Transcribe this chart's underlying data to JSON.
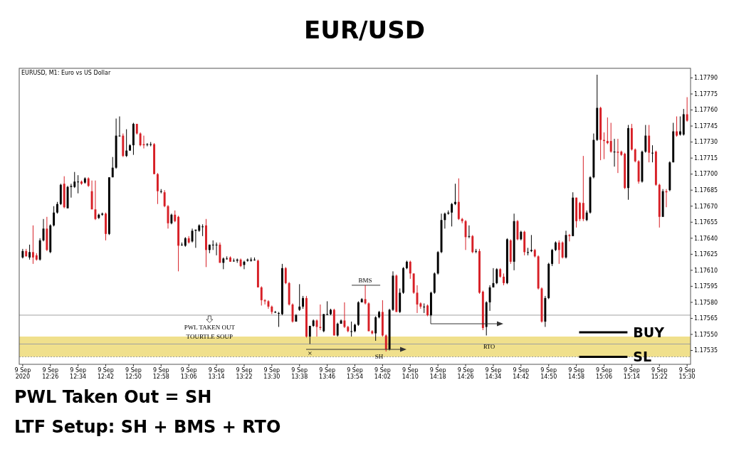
{
  "chart_data": {
    "type": "candlestick",
    "title": "EUR/USD",
    "subtitle": "EURUSD, M1: Euro vs US Dollar",
    "x": [
      "2020-09-09T12:18",
      "2020-09-09T12:19",
      "2020-09-09T12:20",
      "2020-09-09T12:21",
      "2020-09-09T12:22",
      "2020-09-09T12:23",
      "2020-09-09T12:24",
      "2020-09-09T12:25",
      "2020-09-09T12:26",
      "2020-09-09T12:27",
      "2020-09-09T12:28",
      "2020-09-09T12:29",
      "2020-09-09T12:30",
      "2020-09-09T12:31",
      "2020-09-09T12:32",
      "2020-09-09T12:33",
      "2020-09-09T12:34",
      "2020-09-09T12:35",
      "2020-09-09T12:36",
      "2020-09-09T12:37",
      "2020-09-09T12:38",
      "2020-09-09T12:39",
      "2020-09-09T12:40",
      "2020-09-09T12:41",
      "2020-09-09T12:42",
      "2020-09-09T12:43",
      "2020-09-09T12:44",
      "2020-09-09T12:45",
      "2020-09-09T12:46",
      "2020-09-09T12:47",
      "2020-09-09T12:48",
      "2020-09-09T12:49",
      "2020-09-09T12:50",
      "2020-09-09T12:51",
      "2020-09-09T12:52",
      "2020-09-09T12:53",
      "2020-09-09T12:54",
      "2020-09-09T12:55",
      "2020-09-09T12:56",
      "2020-09-09T12:57",
      "2020-09-09T12:58",
      "2020-09-09T12:59",
      "2020-09-09T13:00",
      "2020-09-09T13:01",
      "2020-09-09T13:02",
      "2020-09-09T13:03",
      "2020-09-09T13:04",
      "2020-09-09T13:05",
      "2020-09-09T13:06",
      "2020-09-09T13:07",
      "2020-09-09T13:08",
      "2020-09-09T13:09",
      "2020-09-09T13:10",
      "2020-09-09T13:11",
      "2020-09-09T13:12",
      "2020-09-09T13:13",
      "2020-09-09T13:14",
      "2020-09-09T13:15",
      "2020-09-09T13:16",
      "2020-09-09T13:17",
      "2020-09-09T13:18",
      "2020-09-09T13:19",
      "2020-09-09T13:20",
      "2020-09-09T13:21",
      "2020-09-09T13:22",
      "2020-09-09T13:23",
      "2020-09-09T13:24",
      "2020-09-09T13:25",
      "2020-09-09T13:26",
      "2020-09-09T13:27",
      "2020-09-09T13:28",
      "2020-09-09T13:29",
      "2020-09-09T13:30",
      "2020-09-09T13:31",
      "2020-09-09T13:32",
      "2020-09-09T13:33",
      "2020-09-09T13:34",
      "2020-09-09T13:35",
      "2020-09-09T13:36",
      "2020-09-09T13:37",
      "2020-09-09T13:38",
      "2020-09-09T13:39",
      "2020-09-09T13:40",
      "2020-09-09T13:41",
      "2020-09-09T13:42",
      "2020-09-09T13:43",
      "2020-09-09T13:44",
      "2020-09-09T13:45",
      "2020-09-09T13:46",
      "2020-09-09T13:47",
      "2020-09-09T13:48",
      "2020-09-09T13:49",
      "2020-09-09T13:50",
      "2020-09-09T13:51",
      "2020-09-09T13:52",
      "2020-09-09T13:53",
      "2020-09-09T13:54",
      "2020-09-09T13:55",
      "2020-09-09T13:56",
      "2020-09-09T13:57",
      "2020-09-09T13:58",
      "2020-09-09T13:59",
      "2020-09-09T14:00",
      "2020-09-09T14:01",
      "2020-09-09T14:02",
      "2020-09-09T14:03",
      "2020-09-09T14:04",
      "2020-09-09T14:05",
      "2020-09-09T14:06",
      "2020-09-09T14:07",
      "2020-09-09T14:08",
      "2020-09-09T14:09",
      "2020-09-09T14:10",
      "2020-09-09T14:11",
      "2020-09-09T14:12",
      "2020-09-09T14:13",
      "2020-09-09T14:14",
      "2020-09-09T14:15",
      "2020-09-09T14:16",
      "2020-09-09T14:17",
      "2020-09-09T14:18",
      "2020-09-09T14:19",
      "2020-09-09T14:20",
      "2020-09-09T14:21",
      "2020-09-09T14:22",
      "2020-09-09T14:23",
      "2020-09-09T14:24",
      "2020-09-09T14:25",
      "2020-09-09T14:26",
      "2020-09-09T14:27",
      "2020-09-09T14:28",
      "2020-09-09T14:29",
      "2020-09-09T14:30",
      "2020-09-09T14:31",
      "2020-09-09T14:32",
      "2020-09-09T14:33",
      "2020-09-09T14:34",
      "2020-09-09T14:35",
      "2020-09-09T14:36",
      "2020-09-09T14:37",
      "2020-09-09T14:38",
      "2020-09-09T14:39",
      "2020-09-09T14:40",
      "2020-09-09T14:41",
      "2020-09-09T14:42",
      "2020-09-09T14:43",
      "2020-09-09T14:44",
      "2020-09-09T14:45",
      "2020-09-09T14:46",
      "2020-09-09T14:47",
      "2020-09-09T14:48",
      "2020-09-09T14:49",
      "2020-09-09T14:50",
      "2020-09-09T14:51",
      "2020-09-09T14:52",
      "2020-09-09T14:53",
      "2020-09-09T14:54",
      "2020-09-09T14:55",
      "2020-09-09T14:56",
      "2020-09-09T14:57",
      "2020-09-09T14:58",
      "2020-09-09T14:59",
      "2020-09-09T15:00",
      "2020-09-09T15:01",
      "2020-09-09T15:02",
      "2020-09-09T15:03",
      "2020-09-09T15:04",
      "2020-09-09T15:05",
      "2020-09-09T15:06",
      "2020-09-09T15:07",
      "2020-09-09T15:08",
      "2020-09-09T15:09",
      "2020-09-09T15:10",
      "2020-09-09T15:11",
      "2020-09-09T15:12",
      "2020-09-09T15:13",
      "2020-09-09T15:14",
      "2020-09-09T15:15",
      "2020-09-09T15:16",
      "2020-09-09T15:17",
      "2020-09-09T15:18",
      "2020-09-09T15:19",
      "2020-09-09T15:20",
      "2020-09-09T15:21",
      "2020-09-09T15:22",
      "2020-09-09T15:23",
      "2020-09-09T15:24",
      "2020-09-09T15:25",
      "2020-09-09T15:26",
      "2020-09-09T15:27",
      "2020-09-09T15:28",
      "2020-09-09T15:29",
      "2020-09-09T15:30"
    ],
    "ohlc": [
      [
        1.17622,
        1.1763,
        1.17621,
        1.17628
      ],
      [
        1.17628,
        1.1763,
        1.17623,
        1.17623
      ],
      [
        1.17622,
        1.17634,
        1.1762,
        1.17627
      ],
      [
        1.17627,
        1.17652,
        1.17616,
        1.17622
      ],
      [
        1.17624,
        1.17626,
        1.17619,
        1.1762
      ],
      [
        1.1762,
        1.1764,
        1.17619,
        1.17638
      ],
      [
        1.17638,
        1.17658,
        1.17637,
        1.17649
      ],
      [
        1.17649,
        1.1766,
        1.17628,
        1.17629
      ],
      [
        1.17627,
        1.17653,
        1.17626,
        1.17652
      ],
      [
        1.17652,
        1.1767,
        1.17651,
        1.17664
      ],
      [
        1.17664,
        1.17674,
        1.17663,
        1.17672
      ],
      [
        1.17672,
        1.17691,
        1.17671,
        1.1769
      ],
      [
        1.17691,
        1.17698,
        1.17668,
        1.17669
      ],
      [
        1.17668,
        1.17689,
        1.17668,
        1.17688
      ],
      [
        1.17688,
        1.17691,
        1.17678,
        1.17689
      ],
      [
        1.17688,
        1.17702,
        1.17687,
        1.17693
      ],
      [
        1.17693,
        1.17699,
        1.17682,
        1.17693
      ],
      [
        1.17693,
        1.17694,
        1.1769,
        1.17691
      ],
      [
        1.17692,
        1.17697,
        1.17691,
        1.17696
      ],
      [
        1.17696,
        1.17697,
        1.17688,
        1.17689
      ],
      [
        1.17684,
        1.17694,
        1.17667,
        1.17667
      ],
      [
        1.17667,
        1.17694,
        1.17657,
        1.17658
      ],
      [
        1.17659,
        1.17663,
        1.17658,
        1.17662
      ],
      [
        1.17662,
        1.17664,
        1.17661,
        1.17663
      ],
      [
        1.17663,
        1.17664,
        1.17638,
        1.17644
      ],
      [
        1.17644,
        1.17697,
        1.17643,
        1.17697
      ],
      [
        1.17697,
        1.17716,
        1.17697,
        1.17706
      ],
      [
        1.17706,
        1.17752,
        1.17705,
        1.17736
      ],
      [
        1.17736,
        1.17754,
        1.17735,
        1.17736
      ],
      [
        1.17736,
        1.17738,
        1.17716,
        1.17717
      ],
      [
        1.17717,
        1.17742,
        1.17716,
        1.17722
      ],
      [
        1.17722,
        1.17728,
        1.17722,
        1.17727
      ],
      [
        1.17727,
        1.17748,
        1.17718,
        1.17747
      ],
      [
        1.17747,
        1.17747,
        1.17737,
        1.17738
      ],
      [
        1.17738,
        1.17739,
        1.17726,
        1.17727
      ],
      [
        1.17728,
        1.17736,
        1.17724,
        1.17727
      ],
      [
        1.17728,
        1.17729,
        1.17726,
        1.17728
      ],
      [
        1.17728,
        1.1773,
        1.17726,
        1.17728
      ],
      [
        1.17728,
        1.17729,
        1.177,
        1.177
      ],
      [
        1.177,
        1.17701,
        1.17672,
        1.17684
      ],
      [
        1.17684,
        1.17686,
        1.17682,
        1.17684
      ],
      [
        1.17683,
        1.17685,
        1.17669,
        1.1767
      ],
      [
        1.1767,
        1.17671,
        1.17649,
        1.17654
      ],
      [
        1.17654,
        1.17663,
        1.17653,
        1.17662
      ],
      [
        1.17662,
        1.17666,
        1.17655,
        1.17656
      ],
      [
        1.1766,
        1.17661,
        1.17609,
        1.17633
      ],
      [
        1.17634,
        1.17636,
        1.17633,
        1.17634
      ],
      [
        1.17633,
        1.17641,
        1.17632,
        1.1764
      ],
      [
        1.1764,
        1.17642,
        1.17635,
        1.17636
      ],
      [
        1.17637,
        1.17649,
        1.17636,
        1.17647
      ],
      [
        1.17647,
        1.17648,
        1.17631,
        1.17648
      ],
      [
        1.17647,
        1.17653,
        1.17646,
        1.17652
      ],
      [
        1.17651,
        1.17653,
        1.17642,
        1.17651
      ],
      [
        1.17652,
        1.17658,
        1.17613,
        1.17629
      ],
      [
        1.17629,
        1.17634,
        1.17626,
        1.17634
      ],
      [
        1.17634,
        1.17638,
        1.17629,
        1.17634
      ],
      [
        1.17634,
        1.17636,
        1.17624,
        1.17634
      ],
      [
        1.17634,
        1.17636,
        1.17617,
        1.17617
      ],
      [
        1.17617,
        1.17622,
        1.17611,
        1.17621
      ],
      [
        1.17621,
        1.17623,
        1.1762,
        1.17621
      ],
      [
        1.17622,
        1.17623,
        1.17618,
        1.17618
      ],
      [
        1.17619,
        1.17621,
        1.17618,
        1.17619
      ],
      [
        1.17619,
        1.17621,
        1.17617,
        1.1762
      ],
      [
        1.1762,
        1.17621,
        1.17613,
        1.17614
      ],
      [
        1.17615,
        1.17619,
        1.17611,
        1.17618
      ],
      [
        1.17619,
        1.17621,
        1.17618,
        1.1762
      ],
      [
        1.17619,
        1.17622,
        1.17618,
        1.1762
      ],
      [
        1.1762,
        1.17622,
        1.17619,
        1.1762
      ],
      [
        1.17619,
        1.1762,
        1.17594,
        1.17594
      ],
      [
        1.17594,
        1.17595,
        1.17577,
        1.17582
      ],
      [
        1.17582,
        1.17583,
        1.17578,
        1.17581
      ],
      [
        1.17581,
        1.17582,
        1.17574,
        1.17576
      ],
      [
        1.17576,
        1.17577,
        1.17569,
        1.17571
      ],
      [
        1.17571,
        1.17572,
        1.1757,
        1.17571
      ],
      [
        1.1757,
        1.17571,
        1.17557,
        1.1757
      ],
      [
        1.17569,
        1.17616,
        1.17568,
        1.17612
      ],
      [
        1.17612,
        1.17613,
        1.17597,
        1.17598
      ],
      [
        1.17598,
        1.17599,
        1.17577,
        1.17578
      ],
      [
        1.17578,
        1.17579,
        1.17561,
        1.17562
      ],
      [
        1.17562,
        1.17569,
        1.17562,
        1.17568
      ],
      [
        1.17573,
        1.17597,
        1.17572,
        1.17576
      ],
      [
        1.17576,
        1.17586,
        1.17574,
        1.17584
      ],
      [
        1.17584,
        1.17586,
        1.17547,
        1.17548
      ],
      [
        1.17548,
        1.17558,
        1.17541,
        1.17558
      ],
      [
        1.17558,
        1.17564,
        1.17557,
        1.17563
      ],
      [
        1.17563,
        1.17564,
        1.17548,
        1.17557
      ],
      [
        1.17557,
        1.17578,
        1.17554,
        1.17556
      ],
      [
        1.17553,
        1.17569,
        1.17552,
        1.17569
      ],
      [
        1.17569,
        1.17581,
        1.17568,
        1.17569
      ],
      [
        1.17569,
        1.17574,
        1.17568,
        1.17573
      ],
      [
        1.17573,
        1.17574,
        1.17549,
        1.17549
      ],
      [
        1.17549,
        1.17561,
        1.17548,
        1.1756
      ],
      [
        1.1756,
        1.17564,
        1.1756,
        1.17563
      ],
      [
        1.17563,
        1.1758,
        1.17556,
        1.17557
      ],
      [
        1.17557,
        1.17558,
        1.17552,
        1.17553
      ],
      [
        1.17553,
        1.17562,
        1.17548,
        1.17553
      ],
      [
        1.17553,
        1.1756,
        1.17552,
        1.17559
      ],
      [
        1.17559,
        1.17581,
        1.17558,
        1.1758
      ],
      [
        1.1758,
        1.17584,
        1.1758,
        1.17583
      ],
      [
        1.17583,
        1.17596,
        1.17578,
        1.17579
      ],
      [
        1.17579,
        1.1758,
        1.17553,
        1.17553
      ],
      [
        1.17553,
        1.17554,
        1.1755,
        1.17551
      ],
      [
        1.17551,
        1.17567,
        1.17544,
        1.17566
      ],
      [
        1.17566,
        1.17572,
        1.17565,
        1.17571
      ],
      [
        1.17571,
        1.17582,
        1.17548,
        1.17549
      ],
      [
        1.17549,
        1.1755,
        1.17534,
        1.17536
      ],
      [
        1.17536,
        1.17574,
        1.17535,
        1.17573
      ],
      [
        1.17573,
        1.17609,
        1.17572,
        1.17605
      ],
      [
        1.17605,
        1.17606,
        1.17571,
        1.17571
      ],
      [
        1.17571,
        1.17593,
        1.1757,
        1.17589
      ],
      [
        1.17589,
        1.17613,
        1.17588,
        1.17612
      ],
      [
        1.17612,
        1.17619,
        1.17611,
        1.17618
      ],
      [
        1.17618,
        1.17619,
        1.17602,
        1.17607
      ],
      [
        1.17607,
        1.17607,
        1.17588,
        1.17589
      ],
      [
        1.17589,
        1.17596,
        1.1757,
        1.17578
      ],
      [
        1.17579,
        1.1758,
        1.17574,
        1.17576
      ],
      [
        1.17576,
        1.17579,
        1.1757,
        1.17576
      ],
      [
        1.17577,
        1.17578,
        1.17567,
        1.17568
      ],
      [
        1.17568,
        1.1759,
        1.17567,
        1.17589
      ],
      [
        1.17589,
        1.17608,
        1.17588,
        1.17607
      ],
      [
        1.17607,
        1.17628,
        1.17606,
        1.17627
      ],
      [
        1.17627,
        1.17663,
        1.17626,
        1.17657
      ],
      [
        1.17657,
        1.17664,
        1.17649,
        1.17663
      ],
      [
        1.17663,
        1.17666,
        1.17662,
        1.17664
      ],
      [
        1.17664,
        1.17673,
        1.17651,
        1.17672
      ],
      [
        1.17672,
        1.17691,
        1.17671,
        1.17674
      ],
      [
        1.17674,
        1.17696,
        1.17657,
        1.17658
      ],
      [
        1.17658,
        1.17659,
        1.17654,
        1.17656
      ],
      [
        1.17656,
        1.17657,
        1.17629,
        1.17641
      ],
      [
        1.17642,
        1.17652,
        1.1764,
        1.17642
      ],
      [
        1.17642,
        1.17643,
        1.17626,
        1.17627
      ],
      [
        1.17628,
        1.1763,
        1.17626,
        1.17628
      ],
      [
        1.17628,
        1.1763,
        1.17588,
        1.17589
      ],
      [
        1.1759,
        1.17591,
        1.17554,
        1.17556
      ],
      [
        1.17557,
        1.17581,
        1.17549,
        1.1758
      ],
      [
        1.1758,
        1.17596,
        1.17572,
        1.17594
      ],
      [
        1.17594,
        1.17612,
        1.17594,
        1.17598
      ],
      [
        1.17598,
        1.17612,
        1.17597,
        1.17611
      ],
      [
        1.17611,
        1.17612,
        1.17603,
        1.17604
      ],
      [
        1.17604,
        1.17607,
        1.17596,
        1.17598
      ],
      [
        1.17598,
        1.1764,
        1.17597,
        1.17639
      ],
      [
        1.17638,
        1.17639,
        1.17616,
        1.17618
      ],
      [
        1.17618,
        1.17663,
        1.1761,
        1.17656
      ],
      [
        1.17656,
        1.17657,
        1.17638,
        1.17639
      ],
      [
        1.17639,
        1.17647,
        1.17638,
        1.17646
      ],
      [
        1.17646,
        1.17647,
        1.17624,
        1.17627
      ],
      [
        1.17627,
        1.17631,
        1.17624,
        1.17627
      ],
      [
        1.17628,
        1.17643,
        1.17627,
        1.17629
      ],
      [
        1.17629,
        1.1763,
        1.17622,
        1.17623
      ],
      [
        1.17623,
        1.17624,
        1.17592,
        1.17593
      ],
      [
        1.17593,
        1.17594,
        1.17561,
        1.17562
      ],
      [
        1.17562,
        1.17586,
        1.17557,
        1.17584
      ],
      [
        1.17584,
        1.17617,
        1.17583,
        1.17616
      ],
      [
        1.17616,
        1.1763,
        1.17614,
        1.17629
      ],
      [
        1.17629,
        1.17637,
        1.17628,
        1.17636
      ],
      [
        1.17636,
        1.17638,
        1.17616,
        1.17629
      ],
      [
        1.17636,
        1.17637,
        1.17621,
        1.17622
      ],
      [
        1.17622,
        1.17647,
        1.17621,
        1.17643
      ],
      [
        1.17643,
        1.17644,
        1.17637,
        1.17642
      ],
      [
        1.17642,
        1.17683,
        1.17642,
        1.17678
      ],
      [
        1.17678,
        1.17678,
        1.1765,
        1.17656
      ],
      [
        1.17673,
        1.17674,
        1.17656,
        1.17658
      ],
      [
        1.17673,
        1.17717,
        1.17656,
        1.17658
      ],
      [
        1.17657,
        1.17666,
        1.17656,
        1.17664
      ],
      [
        1.17664,
        1.17698,
        1.17663,
        1.17697
      ],
      [
        1.17697,
        1.17738,
        1.17696,
        1.17732
      ],
      [
        1.17732,
        1.17793,
        1.17731,
        1.17762
      ],
      [
        1.17762,
        1.17763,
        1.17713,
        1.17732
      ],
      [
        1.17732,
        1.17739,
        1.17714,
        1.17731
      ],
      [
        1.17731,
        1.17753,
        1.17728,
        1.17729
      ],
      [
        1.17731,
        1.17748,
        1.1772,
        1.17721
      ],
      [
        1.17721,
        1.17733,
        1.17707,
        1.17721
      ],
      [
        1.17721,
        1.17733,
        1.17701,
        1.1772
      ],
      [
        1.17721,
        1.17722,
        1.17717,
        1.17718
      ],
      [
        1.17719,
        1.1772,
        1.17686,
        1.17687
      ],
      [
        1.17687,
        1.17746,
        1.17676,
        1.17743
      ],
      [
        1.17743,
        1.17747,
        1.17722,
        1.17723
      ],
      [
        1.17723,
        1.17724,
        1.17711,
        1.17712
      ],
      [
        1.17712,
        1.17713,
        1.17691,
        1.17693
      ],
      [
        1.17693,
        1.17722,
        1.17692,
        1.17721
      ],
      [
        1.17721,
        1.17746,
        1.1772,
        1.17736
      ],
      [
        1.17736,
        1.17746,
        1.17711,
        1.1772
      ],
      [
        1.1772,
        1.17727,
        1.17711,
        1.1772
      ],
      [
        1.17721,
        1.17722,
        1.17689,
        1.1769
      ],
      [
        1.1769,
        1.17691,
        1.1765,
        1.1766
      ],
      [
        1.1766,
        1.17686,
        1.1766,
        1.17684
      ],
      [
        1.17684,
        1.17686,
        1.17669,
        1.17683
      ],
      [
        1.17685,
        1.17712,
        1.17684,
        1.17711
      ],
      [
        1.17711,
        1.17748,
        1.17711,
        1.1774
      ],
      [
        1.1774,
        1.17754,
        1.17735,
        1.17736
      ],
      [
        1.17737,
        1.17754,
        1.17736,
        1.1774
      ],
      [
        1.17737,
        1.17761,
        1.17736,
        1.17756
      ],
      [
        1.17756,
        1.17772,
        1.17749,
        1.1775
      ]
    ],
    "xlim": [
      "2020-09-09T12:17",
      "2020-09-09T15:31"
    ],
    "xticks": [
      {
        "value": "2020-09-09T12:18",
        "label": "9 Sep 2020"
      },
      {
        "value": "2020-09-09T12:26",
        "label": "9 Sep 12:26"
      },
      {
        "value": "2020-09-09T12:34",
        "label": "9 Sep 12:34"
      },
      {
        "value": "2020-09-09T12:42",
        "label": "9 Sep 12:42"
      },
      {
        "value": "2020-09-09T12:50",
        "label": "9 Sep 12:50"
      },
      {
        "value": "2020-09-09T12:58",
        "label": "9 Sep 12:58"
      },
      {
        "value": "2020-09-09T13:06",
        "label": "9 Sep 13:06"
      },
      {
        "value": "2020-09-09T13:14",
        "label": "9 Sep 13:14"
      },
      {
        "value": "2020-09-09T13:22",
        "label": "9 Sep 13:22"
      },
      {
        "value": "2020-09-09T13:30",
        "label": "9 Sep 13:30"
      },
      {
        "value": "2020-09-09T13:38",
        "label": "9 Sep 13:38"
      },
      {
        "value": "2020-09-09T13:46",
        "label": "9 Sep 13:46"
      },
      {
        "value": "2020-09-09T13:54",
        "label": "9 Sep 13:54"
      },
      {
        "value": "2020-09-09T14:02",
        "label": "9 Sep 14:02"
      },
      {
        "value": "2020-09-09T14:10",
        "label": "9 Sep 14:10"
      },
      {
        "value": "2020-09-09T14:18",
        "label": "9 Sep 14:18"
      },
      {
        "value": "2020-09-09T14:26",
        "label": "9 Sep 14:26"
      },
      {
        "value": "2020-09-09T14:34",
        "label": "9 Sep 14:34"
      },
      {
        "value": "2020-09-09T14:42",
        "label": "9 Sep 14:42"
      },
      {
        "value": "2020-09-09T14:50",
        "label": "9 Sep 14:50"
      },
      {
        "value": "2020-09-09T14:58",
        "label": "9 Sep 14:58"
      },
      {
        "value": "2020-09-09T15:06",
        "label": "9 Sep 15:06"
      },
      {
        "value": "2020-09-09T15:14",
        "label": "9 Sep 15:14"
      },
      {
        "value": "2020-09-09T15:22",
        "label": "9 Sep 15:22"
      },
      {
        "value": "2020-09-09T15:30",
        "label": "9 Sep 15:30"
      }
    ],
    "ylim": [
      1.17522,
      1.17799
    ],
    "yticks": [
      {
        "value": 1.17535,
        "label": "1.17535"
      },
      {
        "value": 1.1755,
        "label": "1.17550"
      },
      {
        "value": 1.17565,
        "label": "1.17565"
      },
      {
        "value": 1.1758,
        "label": "1.17580"
      },
      {
        "value": 1.17595,
        "label": "1.17595"
      },
      {
        "value": 1.1761,
        "label": "1.17610"
      },
      {
        "value": 1.17625,
        "label": "1.17625"
      },
      {
        "value": 1.1764,
        "label": "1.17640"
      },
      {
        "value": 1.17655,
        "label": "1.17655"
      },
      {
        "value": 1.1767,
        "label": "1.17670"
      },
      {
        "value": 1.17685,
        "label": "1.17685"
      },
      {
        "value": 1.177,
        "label": "1.17700"
      },
      {
        "value": 1.17715,
        "label": "1.17715"
      },
      {
        "value": 1.1773,
        "label": "1.17730"
      },
      {
        "value": 1.17745,
        "label": "1.17745"
      },
      {
        "value": 1.1776,
        "label": "1.17760"
      },
      {
        "value": 1.17775,
        "label": "1.17775"
      },
      {
        "value": 1.1779,
        "label": "1.17790"
      }
    ],
    "ref_lines": [
      {
        "axis": "y",
        "value": 1.17568,
        "color": "#a0a0a0",
        "line_style": "solid"
      },
      {
        "axis": "y",
        "value": 1.17541,
        "color": "#a0a0a0",
        "line_style": "solid"
      },
      {
        "axis": "y",
        "value": 1.17529,
        "color": "#a0a0a0",
        "line_style": "dotted"
      },
      {
        "axis": "y",
        "value": 1.17552,
        "label": "BUY",
        "color": "#000000",
        "line_style": "solid"
      },
      {
        "axis": "y",
        "value": 1.17529,
        "label": "SL",
        "color": "#000000",
        "line_style": "solid"
      }
    ],
    "bands": [
      {
        "axis": "y",
        "from": 1.17529,
        "to": 1.17548,
        "label": "RTO",
        "color": "#f0e08c"
      }
    ],
    "annotations": [
      {
        "text": "BMS",
        "x": "2020-09-09T13:57",
        "y": 1.17596
      },
      {
        "text": "SH",
        "x": "2020-09-09T14:01",
        "y": 1.17529
      },
      {
        "text": "×",
        "x": "2020-09-09T13:41",
        "y": 1.17532
      },
      {
        "text": "PWL TAKEN OUT",
        "x": "2020-09-09T13:12",
        "y": 1.17568
      },
      {
        "text": "TOURTLE SOUP",
        "x": "2020-09-09T13:12",
        "y": 1.17548
      },
      "PWL Taken Out = SH",
      "LTF Setup: SH + BMS + RTO"
    ]
  }
}
